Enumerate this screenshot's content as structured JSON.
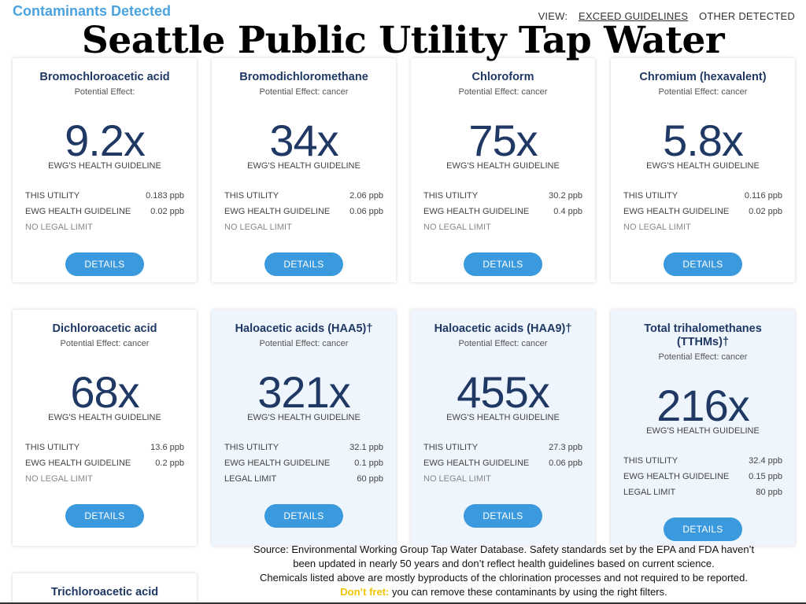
{
  "header": {
    "section_title": "Contaminants Detected",
    "view_label": "VIEW:",
    "view_options": [
      "EXCEED GUIDELINES",
      "OTHER DETECTED"
    ],
    "overlay_title": "Seattle Public Utility Tap Water"
  },
  "common": {
    "guideline_caption": "EWG'S HEALTH GUIDELINE",
    "this_utility": "THIS UTILITY",
    "ewg_guideline": "EWG HEALTH GUIDELINE",
    "details": "DETAILS"
  },
  "cards": [
    {
      "name": "Bromochloroacetic acid",
      "effect": "Potential Effect:",
      "multiple": "9.2x",
      "utility": "0.183 ppb",
      "guideline": "0.02 ppb",
      "limit_label": "NO LEGAL LIMIT",
      "limit_value": ""
    },
    {
      "name": "Bromodichloromethane",
      "effect": "Potential Effect: cancer",
      "multiple": "34x",
      "utility": "2.06 ppb",
      "guideline": "0.06 ppb",
      "limit_label": "NO LEGAL LIMIT",
      "limit_value": ""
    },
    {
      "name": "Chloroform",
      "effect": "Potential Effect: cancer",
      "multiple": "75x",
      "utility": "30.2 ppb",
      "guideline": "0.4 ppb",
      "limit_label": "NO LEGAL LIMIT",
      "limit_value": ""
    },
    {
      "name": "Chromium (hexavalent)",
      "effect": "Potential Effect: cancer",
      "multiple": "5.8x",
      "utility": "0.116 ppb",
      "guideline": "0.02 ppb",
      "limit_label": "NO LEGAL LIMIT",
      "limit_value": ""
    },
    {
      "name": "Dichloroacetic acid",
      "effect": "Potential Effect: cancer",
      "multiple": "68x",
      "utility": "13.6 ppb",
      "guideline": "0.2 ppb",
      "limit_label": "NO LEGAL LIMIT",
      "limit_value": ""
    },
    {
      "name": "Haloacetic acids (HAA5)†",
      "effect": "Potential Effect: cancer",
      "multiple": "321x",
      "utility": "32.1 ppb",
      "guideline": "0.1 ppb",
      "limit_label": "LEGAL LIMIT",
      "limit_value": "60 ppb"
    },
    {
      "name": "Haloacetic acids (HAA9)†",
      "effect": "Potential Effect: cancer",
      "multiple": "455x",
      "utility": "27.3 ppb",
      "guideline": "0.06 ppb",
      "limit_label": "NO LEGAL LIMIT",
      "limit_value": ""
    },
    {
      "name": "Total trihalomethanes (TTHMs)†",
      "effect": "Potential Effect: cancer",
      "multiple": "216x",
      "utility": "32.4 ppb",
      "guideline": "0.15 ppb",
      "limit_label": "LEGAL LIMIT",
      "limit_value": "80 ppb"
    },
    {
      "name": "Trichloroacetic acid"
    }
  ],
  "source": {
    "line1": "Source: Environmental Working Group Tap Water Database. Safety standards set by the EPA and FDA haven’t",
    "line2": "been updated in nearly 50 years and don’t reflect health guidelines based on current science.",
    "line3": "Chemicals listed above are mostly byproducts of the chlorination processes and not required to be reported.",
    "fret_label": "Don’t fret:",
    "fret_text": "you can remove these contaminants by using the right filters."
  }
}
